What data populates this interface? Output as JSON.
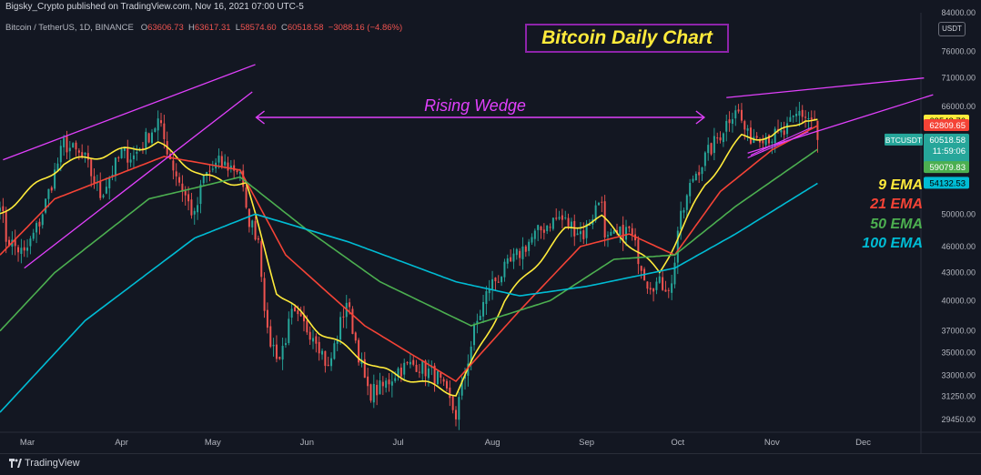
{
  "header": {
    "publisher_line": "Bigsky_Crypto published on TradingView.com, Nov 16, 2021 07:00 UTC-5",
    "symbol": "Bitcoin / TetherUS, 1D, BINANCE",
    "ohlc": [
      {
        "key": "O",
        "value": "63606.73"
      },
      {
        "key": "H",
        "value": "63617.31"
      },
      {
        "key": "L",
        "value": "58574.60"
      },
      {
        "key": "C",
        "value": "60518.58"
      }
    ],
    "change": "−3088.16 (−4.86%)"
  },
  "colors": {
    "background": "#131722",
    "up": "#26a69a",
    "down": "#ef5350",
    "ema9": "#ffeb3b",
    "ema21": "#f44336",
    "ema50": "#4caf50",
    "ema100": "#00bcd4",
    "wedge": "#e040fb",
    "title_border": "#8e24aa"
  },
  "currency": "USDT",
  "footer": {
    "brand": "TradingView"
  },
  "chart_data": {
    "type": "candlestick",
    "title": "Bitcoin Daily Chart",
    "x_tick_labels": [
      "Mar",
      "Apr",
      "May",
      "Jun",
      "Jul",
      "Aug",
      "Sep",
      "Oct",
      "Nov",
      "Dec"
    ],
    "x_range": [
      "2021-02-20",
      "2021-12-20"
    ],
    "y_scale": "log",
    "y_range": [
      28500,
      84000
    ],
    "y_tick_labels": [
      "84000.00",
      "76000.00",
      "71000.00",
      "66000.00",
      "50000.00",
      "46000.00",
      "43000.00",
      "40000.00",
      "37000.00",
      "35000.00",
      "33000.00",
      "31250.00",
      "29450.00"
    ],
    "price_anchors": [
      [
        "2021-02-20",
        52000
      ],
      [
        "2021-02-22",
        47000
      ],
      [
        "2021-02-28",
        45000
      ],
      [
        "2021-03-05",
        49000
      ],
      [
        "2021-03-13",
        60000
      ],
      [
        "2021-03-20",
        57500
      ],
      [
        "2021-03-25",
        52500
      ],
      [
        "2021-04-01",
        58500
      ],
      [
        "2021-04-05",
        58000
      ],
      [
        "2021-04-13",
        63500
      ],
      [
        "2021-04-18",
        56500
      ],
      [
        "2021-04-25",
        49500
      ],
      [
        "2021-04-28",
        55000
      ],
      [
        "2021-05-03",
        57000
      ],
      [
        "2021-05-10",
        56000
      ],
      [
        "2021-05-12",
        50000
      ],
      [
        "2021-05-16",
        47000
      ],
      [
        "2021-05-19",
        36500
      ],
      [
        "2021-05-23",
        34500
      ],
      [
        "2021-05-27",
        38500
      ],
      [
        "2021-06-04",
        36500
      ],
      [
        "2021-06-08",
        33500
      ],
      [
        "2021-06-14",
        40000
      ],
      [
        "2021-06-21",
        31500
      ],
      [
        "2021-06-26",
        32000
      ],
      [
        "2021-07-01",
        33500
      ],
      [
        "2021-07-07",
        34000
      ],
      [
        "2021-07-14",
        32800
      ],
      [
        "2021-07-20",
        29800
      ],
      [
        "2021-07-26",
        37000
      ],
      [
        "2021-07-31",
        41500
      ],
      [
        "2021-08-07",
        44000
      ],
      [
        "2021-08-14",
        47000
      ],
      [
        "2021-08-20",
        49000
      ],
      [
        "2021-08-23",
        49500
      ],
      [
        "2021-08-31",
        47500
      ],
      [
        "2021-09-06",
        52500
      ],
      [
        "2021-09-07",
        46500
      ],
      [
        "2021-09-15",
        48000
      ],
      [
        "2021-09-21",
        42000
      ],
      [
        "2021-09-29",
        41500
      ],
      [
        "2021-10-01",
        48000
      ],
      [
        "2021-10-06",
        55000
      ],
      [
        "2021-10-15",
        61500
      ],
      [
        "2021-10-20",
        66000
      ],
      [
        "2021-10-24",
        61000
      ],
      [
        "2021-10-28",
        61500
      ],
      [
        "2021-11-01",
        61000
      ],
      [
        "2021-11-05",
        61500
      ],
      [
        "2021-11-10",
        65000
      ],
      [
        "2021-11-13",
        64000
      ],
      [
        "2021-11-15",
        63600
      ],
      [
        "2021-11-16",
        60500
      ]
    ],
    "ema_anchors": {
      "ema9": [
        [
          "2021-02-20",
          50000
        ],
        [
          "2021-03-13",
          57000
        ],
        [
          "2021-04-13",
          60000
        ],
        [
          "2021-04-28",
          55000
        ],
        [
          "2021-05-12",
          54000
        ],
        [
          "2021-05-22",
          41000
        ],
        [
          "2021-06-05",
          37000
        ],
        [
          "2021-06-25",
          33500
        ],
        [
          "2021-07-20",
          31500
        ],
        [
          "2021-08-05",
          40000
        ],
        [
          "2021-08-25",
          48000
        ],
        [
          "2021-09-06",
          49500
        ],
        [
          "2021-09-25",
          43000
        ],
        [
          "2021-10-10",
          54000
        ],
        [
          "2021-10-22",
          61000
        ],
        [
          "2021-11-01",
          61000
        ],
        [
          "2021-11-12",
          64000
        ],
        [
          "2021-11-16",
          63543.76
        ]
      ],
      "ema21": [
        [
          "2021-02-20",
          45000
        ],
        [
          "2021-03-10",
          52000
        ],
        [
          "2021-04-15",
          58000
        ],
        [
          "2021-05-10",
          56000
        ],
        [
          "2021-05-25",
          45000
        ],
        [
          "2021-06-20",
          37500
        ],
        [
          "2021-07-20",
          32500
        ],
        [
          "2021-08-10",
          39000
        ],
        [
          "2021-08-30",
          46000
        ],
        [
          "2021-09-15",
          47500
        ],
        [
          "2021-09-30",
          45000
        ],
        [
          "2021-10-15",
          53000
        ],
        [
          "2021-11-01",
          59000
        ],
        [
          "2021-11-16",
          62809.65
        ]
      ],
      "ema50": [
        [
          "2021-02-20",
          37000
        ],
        [
          "2021-03-10",
          43000
        ],
        [
          "2021-04-10",
          52000
        ],
        [
          "2021-05-10",
          55000
        ],
        [
          "2021-06-01",
          48000
        ],
        [
          "2021-06-25",
          42000
        ],
        [
          "2021-07-25",
          37500
        ],
        [
          "2021-08-20",
          40000
        ],
        [
          "2021-09-10",
          44500
        ],
        [
          "2021-09-30",
          45000
        ],
        [
          "2021-10-20",
          51000
        ],
        [
          "2021-11-16",
          59079.83
        ]
      ],
      "ema100": [
        [
          "2021-02-20",
          30000
        ],
        [
          "2021-03-20",
          38000
        ],
        [
          "2021-04-25",
          47000
        ],
        [
          "2021-05-15",
          50000
        ],
        [
          "2021-06-15",
          46500
        ],
        [
          "2021-07-20",
          42000
        ],
        [
          "2021-08-10",
          40500
        ],
        [
          "2021-09-01",
          41500
        ],
        [
          "2021-09-30",
          43500
        ],
        [
          "2021-10-20",
          47500
        ],
        [
          "2021-11-16",
          54132.53
        ]
      ]
    },
    "wedges": [
      {
        "upper": [
          [
            "2021-02-21",
            57500
          ],
          [
            "2021-05-15",
            73500
          ]
        ],
        "lower": [
          [
            "2021-02-28",
            43500
          ],
          [
            "2021-05-14",
            68500
          ]
        ]
      },
      {
        "upper": [
          [
            "2021-10-17",
            67500
          ],
          [
            "2021-12-21",
            71000
          ]
        ],
        "lower": [
          [
            "2021-10-24",
            58500
          ],
          [
            "2021-12-24",
            68000
          ]
        ]
      }
    ],
    "wedge_lines_narrow": [
      [
        [
          "2021-10-24",
          57800
        ],
        [
          "2021-11-13",
          61800
        ]
      ],
      [
        [
          "2021-10-25",
          58200
        ],
        [
          "2021-11-14",
          62500
        ]
      ]
    ],
    "annotation": {
      "text": "Rising Wedge",
      "from": "2021-05-15",
      "to": "2021-10-10",
      "y": 67000
    },
    "ema_legend": [
      {
        "label": "9 EMA",
        "color": "#ffeb3b"
      },
      {
        "label": "21 EMA",
        "color": "#f44336"
      },
      {
        "label": "50 EMA",
        "color": "#4caf50"
      },
      {
        "label": "100 EMA",
        "color": "#00bcd4"
      }
    ],
    "price_tags": [
      {
        "text": "63543.76",
        "price": 63543.76,
        "bg": "#ffeb3b",
        "fg": "#000000"
      },
      {
        "text": "62809.65",
        "price": 62809.65,
        "bg": "#f44336",
        "fg": "#ffffff"
      },
      {
        "text": "60518.58",
        "price": 60518.58,
        "bg": "#26a69a",
        "fg": "#ffffff",
        "symbol": "BTCUSDT",
        "countdown": "11:59:06"
      },
      {
        "text": "59079.83",
        "price": 59079.83,
        "bg": "#4caf50",
        "fg": "#ffffff"
      },
      {
        "text": "54132.53",
        "price": 54132.53,
        "bg": "#00bcd4",
        "fg": "#000000"
      }
    ],
    "grid": false
  }
}
